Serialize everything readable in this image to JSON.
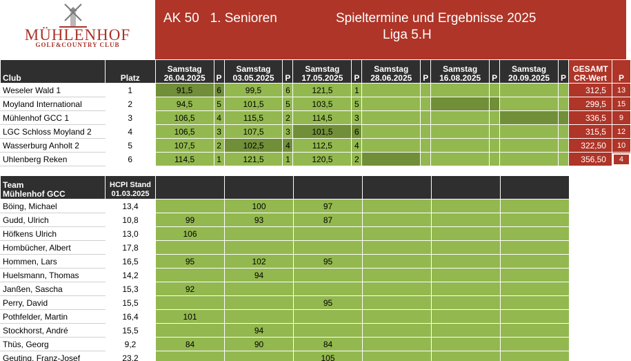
{
  "header": {
    "logo_main": "MÜHLENHOF",
    "logo_sub": "GOLF&COUNTRY CLUB",
    "category": "AK 50   1. Senioren",
    "title": "Spieltermine und Ergebnisse 2025",
    "league": "Liga 5.H"
  },
  "standings": {
    "col_club": "Club",
    "col_platz": "Platz",
    "col_p": "P",
    "col_total_1": "GESAMT",
    "col_total_2": "CR-Wert",
    "dates": [
      {
        "day": "Samstag",
        "date": "26.04.2025"
      },
      {
        "day": "Samstag",
        "date": "03.05.2025"
      },
      {
        "day": "Samstag",
        "date": "17.05.2025"
      },
      {
        "day": "Samstag",
        "date": "28.06.2025"
      },
      {
        "day": "Samstag",
        "date": "16.08.2025"
      },
      {
        "day": "Samstag",
        "date": "20.09.2025"
      }
    ],
    "rows": [
      {
        "club": "Weseler Wald 1",
        "platz": "1",
        "r1": "91,5",
        "p1": "6",
        "r2": "99,5",
        "p2": "6",
        "r3": "121,5",
        "p3": "1",
        "total": "312,5",
        "points": "13"
      },
      {
        "club": "Moyland International",
        "platz": "2",
        "r1": "94,5",
        "p1": "5",
        "r2": "101,5",
        "p2": "5",
        "r3": "103,5",
        "p3": "5",
        "total": "299,5",
        "points": "15"
      },
      {
        "club": "Mühlenhof GCC 1",
        "platz": "3",
        "r1": "106,5",
        "p1": "4",
        "r2": "115,5",
        "p2": "2",
        "r3": "114,5",
        "p3": "3",
        "total": "336,5",
        "points": "9"
      },
      {
        "club": "LGC Schloss Moyland 2",
        "platz": "4",
        "r1": "106,5",
        "p1": "3",
        "r2": "107,5",
        "p2": "3",
        "r3": "101,5",
        "p3": "6",
        "total": "315,5",
        "points": "12"
      },
      {
        "club": "Wasserburg Anholt 2",
        "platz": "5",
        "r1": "107,5",
        "p1": "2",
        "r2": "102,5",
        "p2": "4",
        "r3": "112,5",
        "p3": "4",
        "total": "322,50",
        "points": "10"
      },
      {
        "club": "Uhlenberg Reken",
        "platz": "6",
        "r1": "114,5",
        "p1": "1",
        "r2": "121,5",
        "p2": "1",
        "r3": "120,5",
        "p3": "2",
        "total": "356,50",
        "points": "4"
      }
    ]
  },
  "team": {
    "col_team_1": "Team",
    "col_team_2": "Mühlenhof GCC",
    "col_hcpi_1": "HCPI Stand",
    "col_hcpi_2": "01.03.2025",
    "players": [
      {
        "name": "Böing, Michael",
        "hcpi": "13,4",
        "s1": "",
        "s2": "100",
        "s3": "97"
      },
      {
        "name": "Gudd, Ulrich",
        "hcpi": "10,8",
        "s1": "99",
        "s2": "93",
        "s3": "87"
      },
      {
        "name": "Höfkens Ulrich",
        "hcpi": "13,0",
        "s1": "106",
        "s2": "",
        "s3": ""
      },
      {
        "name": "Hombücher, Albert",
        "hcpi": "17,8",
        "s1": "",
        "s2": "",
        "s3": ""
      },
      {
        "name": "Hommen, Lars",
        "hcpi": "16,5",
        "s1": "95",
        "s2": "102",
        "s3": "95"
      },
      {
        "name": "Huelsmann, Thomas",
        "hcpi": "14,2",
        "s1": "",
        "s2": "94",
        "s3": ""
      },
      {
        "name": "Janßen, Sascha",
        "hcpi": "15,3",
        "s1": "92",
        "s2": "",
        "s3": ""
      },
      {
        "name": "Perry, David",
        "hcpi": "15,5",
        "s1": "",
        "s2": "",
        "s3": "95"
      },
      {
        "name": "Pothfelder, Martin",
        "hcpi": "16,4",
        "s1": "101",
        "s2": "",
        "s3": ""
      },
      {
        "name": "Stockhorst, André",
        "hcpi": "15,5",
        "s1": "",
        "s2": "94",
        "s3": ""
      },
      {
        "name": "Thüs, Georg",
        "hcpi": "9,2",
        "s1": "84",
        "s2": "90",
        "s3": "84"
      },
      {
        "name": "Geuting, Franz-Josef",
        "hcpi": "23,2",
        "s1": "",
        "s2": "",
        "s3": "105"
      }
    ]
  },
  "colors": {
    "accent_red": "#ae3528",
    "green": "#93b84f",
    "green_dark": "#718f38",
    "header_dark": "#2f2f2f"
  }
}
